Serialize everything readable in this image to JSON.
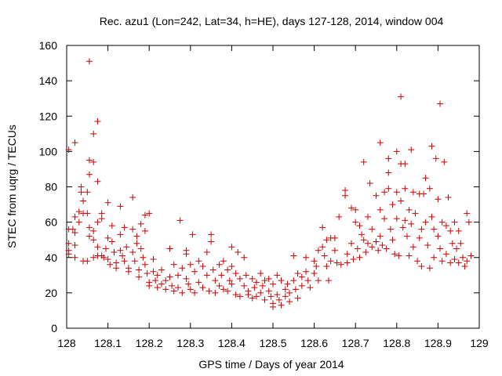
{
  "chart_data": {
    "type": "scatter",
    "title": "Rec. azu1 (Lon=242, Lat=34, h=HE), days 127-128, 2014, window 004",
    "xlabel": "GPS time / Days of year 2014",
    "ylabel": "STEC from uqrg / TECUs",
    "xlim": [
      128,
      129
    ],
    "ylim": [
      0,
      160
    ],
    "x_ticks": [
      "128",
      "128.1",
      "128.2",
      "128.3",
      "128.4",
      "128.5",
      "128.6",
      "128.7",
      "128.8",
      "128.9",
      "129"
    ],
    "y_ticks": [
      "0",
      "20",
      "40",
      "60",
      "80",
      "100",
      "120",
      "140",
      "160"
    ],
    "grid": false,
    "marker": "+",
    "color": "#cc0000",
    "series": [
      {
        "points": [
          [
            128.005,
            101
          ],
          [
            128.005,
            56
          ],
          [
            128.005,
            48
          ],
          [
            128.005,
            44
          ],
          [
            128.005,
            42
          ],
          [
            128.015,
            56
          ],
          [
            128.02,
            105
          ],
          [
            128.02,
            63
          ],
          [
            128.02,
            54
          ],
          [
            128.02,
            47
          ],
          [
            128.02,
            40
          ],
          [
            128.03,
            66
          ],
          [
            128.03,
            60
          ],
          [
            128.035,
            80
          ],
          [
            128.035,
            77
          ],
          [
            128.04,
            72
          ],
          [
            128.04,
            65
          ],
          [
            128.04,
            38
          ],
          [
            128.05,
            77
          ],
          [
            128.05,
            65
          ],
          [
            128.05,
            38
          ],
          [
            128.055,
            151
          ],
          [
            128.055,
            95
          ],
          [
            128.055,
            87
          ],
          [
            128.055,
            57
          ],
          [
            128.055,
            52
          ],
          [
            128.065,
            110
          ],
          [
            128.065,
            94
          ],
          [
            128.065,
            55
          ],
          [
            128.065,
            50
          ],
          [
            128.065,
            40
          ],
          [
            128.075,
            117
          ],
          [
            128.075,
            83
          ],
          [
            128.075,
            60
          ],
          [
            128.075,
            46
          ],
          [
            128.075,
            41
          ],
          [
            128.085,
            65
          ],
          [
            128.085,
            62
          ],
          [
            128.085,
            41
          ],
          [
            128.09,
            40
          ],
          [
            128.095,
            45
          ],
          [
            128.1,
            71
          ],
          [
            128.1,
            51
          ],
          [
            128.1,
            39
          ],
          [
            128.105,
            36
          ],
          [
            128.11,
            58
          ],
          [
            128.11,
            49
          ],
          [
            128.115,
            43
          ],
          [
            128.12,
            37
          ],
          [
            128.12,
            34
          ],
          [
            128.13,
            69
          ],
          [
            128.13,
            53
          ],
          [
            128.13,
            44
          ],
          [
            128.135,
            41
          ],
          [
            128.14,
            57
          ],
          [
            128.14,
            38
          ],
          [
            128.145,
            46
          ],
          [
            128.15,
            34
          ],
          [
            128.15,
            32
          ],
          [
            128.16,
            74
          ],
          [
            128.16,
            56
          ],
          [
            128.16,
            43
          ],
          [
            128.165,
            38
          ],
          [
            128.17,
            52
          ],
          [
            128.17,
            48
          ],
          [
            128.175,
            33
          ],
          [
            128.175,
            29
          ],
          [
            128.18,
            59
          ],
          [
            128.18,
            45
          ],
          [
            128.185,
            40
          ],
          [
            128.19,
            64
          ],
          [
            128.19,
            55
          ],
          [
            128.19,
            36
          ],
          [
            128.195,
            31
          ],
          [
            128.2,
            65
          ],
          [
            128.2,
            26
          ],
          [
            128.2,
            24
          ],
          [
            128.21,
            39
          ],
          [
            128.21,
            32
          ],
          [
            128.215,
            27
          ],
          [
            128.22,
            30
          ],
          [
            128.22,
            23
          ],
          [
            128.23,
            33
          ],
          [
            128.23,
            25
          ],
          [
            128.24,
            27
          ],
          [
            128.24,
            22
          ],
          [
            128.25,
            45
          ],
          [
            128.25,
            29
          ],
          [
            128.255,
            24
          ],
          [
            128.26,
            36
          ],
          [
            128.26,
            21
          ],
          [
            128.27,
            30
          ],
          [
            128.27,
            23
          ],
          [
            128.275,
            61
          ],
          [
            128.28,
            34
          ],
          [
            128.28,
            20
          ],
          [
            128.29,
            44
          ],
          [
            128.29,
            42
          ],
          [
            128.29,
            28
          ],
          [
            128.295,
            25
          ],
          [
            128.3,
            36
          ],
          [
            128.3,
            22
          ],
          [
            128.305,
            53
          ],
          [
            128.31,
            32
          ],
          [
            128.31,
            20
          ],
          [
            128.32,
            38
          ],
          [
            128.32,
            26
          ],
          [
            128.33,
            35
          ],
          [
            128.33,
            23
          ],
          [
            128.34,
            43
          ],
          [
            128.34,
            30
          ],
          [
            128.345,
            21
          ],
          [
            128.35,
            53
          ],
          [
            128.35,
            49
          ],
          [
            128.355,
            33
          ],
          [
            128.36,
            27
          ],
          [
            128.36,
            20
          ],
          [
            128.37,
            36
          ],
          [
            128.37,
            24
          ],
          [
            128.375,
            30
          ],
          [
            128.38,
            38
          ],
          [
            128.38,
            22
          ],
          [
            128.39,
            33
          ],
          [
            128.39,
            21
          ],
          [
            128.395,
            27
          ],
          [
            128.4,
            46
          ],
          [
            128.4,
            35
          ],
          [
            128.4,
            25
          ],
          [
            128.41,
            31
          ],
          [
            128.41,
            19
          ],
          [
            128.415,
            43
          ],
          [
            128.42,
            28
          ],
          [
            128.42,
            18
          ],
          [
            128.43,
            40
          ],
          [
            128.43,
            24
          ],
          [
            128.435,
            30
          ],
          [
            128.44,
            21
          ],
          [
            128.44,
            19
          ],
          [
            128.45,
            28
          ],
          [
            128.45,
            17
          ],
          [
            128.455,
            23
          ],
          [
            128.46,
            26
          ],
          [
            128.46,
            18
          ],
          [
            128.47,
            31
          ],
          [
            128.47,
            20
          ],
          [
            128.475,
            24
          ],
          [
            128.48,
            27
          ],
          [
            128.48,
            16
          ],
          [
            128.49,
            28
          ],
          [
            128.49,
            21
          ],
          [
            128.495,
            18
          ],
          [
            128.5,
            25
          ],
          [
            128.5,
            14
          ],
          [
            128.5,
            12
          ],
          [
            128.51,
            30
          ],
          [
            128.51,
            19
          ],
          [
            128.515,
            16
          ],
          [
            128.52,
            27
          ],
          [
            128.52,
            13
          ],
          [
            128.53,
            22
          ],
          [
            128.53,
            18
          ],
          [
            128.535,
            25
          ],
          [
            128.54,
            20
          ],
          [
            128.54,
            15
          ],
          [
            128.55,
            41
          ],
          [
            128.55,
            27
          ],
          [
            128.555,
            22
          ],
          [
            128.56,
            31
          ],
          [
            128.56,
            17
          ],
          [
            128.57,
            29
          ],
          [
            128.57,
            24
          ],
          [
            128.58,
            40
          ],
          [
            128.58,
            32
          ],
          [
            128.585,
            27
          ],
          [
            128.59,
            23
          ],
          [
            128.6,
            38
          ],
          [
            128.6,
            31
          ],
          [
            128.605,
            35
          ],
          [
            128.61,
            44
          ],
          [
            128.61,
            27
          ],
          [
            128.62,
            57
          ],
          [
            128.62,
            46
          ],
          [
            128.625,
            41
          ],
          [
            128.63,
            50
          ],
          [
            128.63,
            35
          ],
          [
            128.635,
            27
          ],
          [
            128.64,
            51
          ],
          [
            128.64,
            38
          ],
          [
            128.65,
            51
          ],
          [
            128.65,
            44
          ],
          [
            128.655,
            37
          ],
          [
            128.66,
            63
          ],
          [
            128.665,
            36
          ],
          [
            128.675,
            78
          ],
          [
            128.675,
            75
          ],
          [
            128.68,
            42
          ],
          [
            128.68,
            37
          ],
          [
            128.69,
            68
          ],
          [
            128.69,
            48
          ],
          [
            128.695,
            39
          ],
          [
            128.7,
            67
          ],
          [
            128.7,
            60
          ],
          [
            128.705,
            45
          ],
          [
            128.71,
            58
          ],
          [
            128.71,
            40
          ],
          [
            128.715,
            53
          ],
          [
            128.72,
            94
          ],
          [
            128.72,
            50
          ],
          [
            128.725,
            43
          ],
          [
            128.73,
            63
          ],
          [
            128.73,
            48
          ],
          [
            128.735,
            82
          ],
          [
            128.74,
            56
          ],
          [
            128.74,
            46
          ],
          [
            128.75,
            75
          ],
          [
            128.75,
            49
          ],
          [
            128.755,
            44
          ],
          [
            128.76,
            105
          ],
          [
            128.76,
            67
          ],
          [
            128.76,
            52
          ],
          [
            128.765,
            47
          ],
          [
            128.77,
            77
          ],
          [
            128.77,
            62
          ],
          [
            128.775,
            45
          ],
          [
            128.78,
            96
          ],
          [
            128.78,
            88
          ],
          [
            128.78,
            79
          ],
          [
            128.785,
            56
          ],
          [
            128.79,
            70
          ],
          [
            128.79,
            50
          ],
          [
            128.795,
            42
          ],
          [
            128.8,
            100
          ],
          [
            128.8,
            77
          ],
          [
            128.8,
            62
          ],
          [
            128.805,
            41
          ],
          [
            128.81,
            131
          ],
          [
            128.81,
            93
          ],
          [
            128.81,
            72
          ],
          [
            128.815,
            57
          ],
          [
            128.82,
            93
          ],
          [
            128.82,
            79
          ],
          [
            128.82,
            61
          ],
          [
            128.825,
            52
          ],
          [
            128.83,
            67
          ],
          [
            128.83,
            41
          ],
          [
            128.835,
            101
          ],
          [
            128.835,
            59
          ],
          [
            128.84,
            77
          ],
          [
            128.84,
            46
          ],
          [
            128.845,
            65
          ],
          [
            128.85,
            38
          ],
          [
            128.855,
            76
          ],
          [
            128.855,
            51
          ],
          [
            128.86,
            56
          ],
          [
            128.86,
            35
          ],
          [
            128.865,
            76
          ],
          [
            128.87,
            85
          ],
          [
            128.87,
            60
          ],
          [
            128.875,
            47
          ],
          [
            128.88,
            79
          ],
          [
            128.88,
            34
          ],
          [
            128.885,
            103
          ],
          [
            128.885,
            63
          ],
          [
            128.89,
            56
          ],
          [
            128.89,
            40
          ],
          [
            128.895,
            96
          ],
          [
            128.9,
            73
          ],
          [
            128.9,
            52
          ],
          [
            128.905,
            127
          ],
          [
            128.905,
            45
          ],
          [
            128.91,
            60
          ],
          [
            128.91,
            38
          ],
          [
            128.915,
            94
          ],
          [
            128.92,
            58
          ],
          [
            128.92,
            42
          ],
          [
            128.925,
            74
          ],
          [
            128.93,
            55
          ],
          [
            128.93,
            37
          ],
          [
            128.935,
            48
          ],
          [
            128.94,
            60
          ],
          [
            128.94,
            39
          ],
          [
            128.945,
            45
          ],
          [
            128.95,
            55
          ],
          [
            128.95,
            37
          ],
          [
            128.955,
            48
          ],
          [
            128.96,
            40
          ],
          [
            128.965,
            35
          ],
          [
            128.97,
            65
          ],
          [
            128.97,
            38
          ],
          [
            128.975,
            60
          ],
          [
            128.98,
            41
          ]
        ]
      }
    ]
  }
}
